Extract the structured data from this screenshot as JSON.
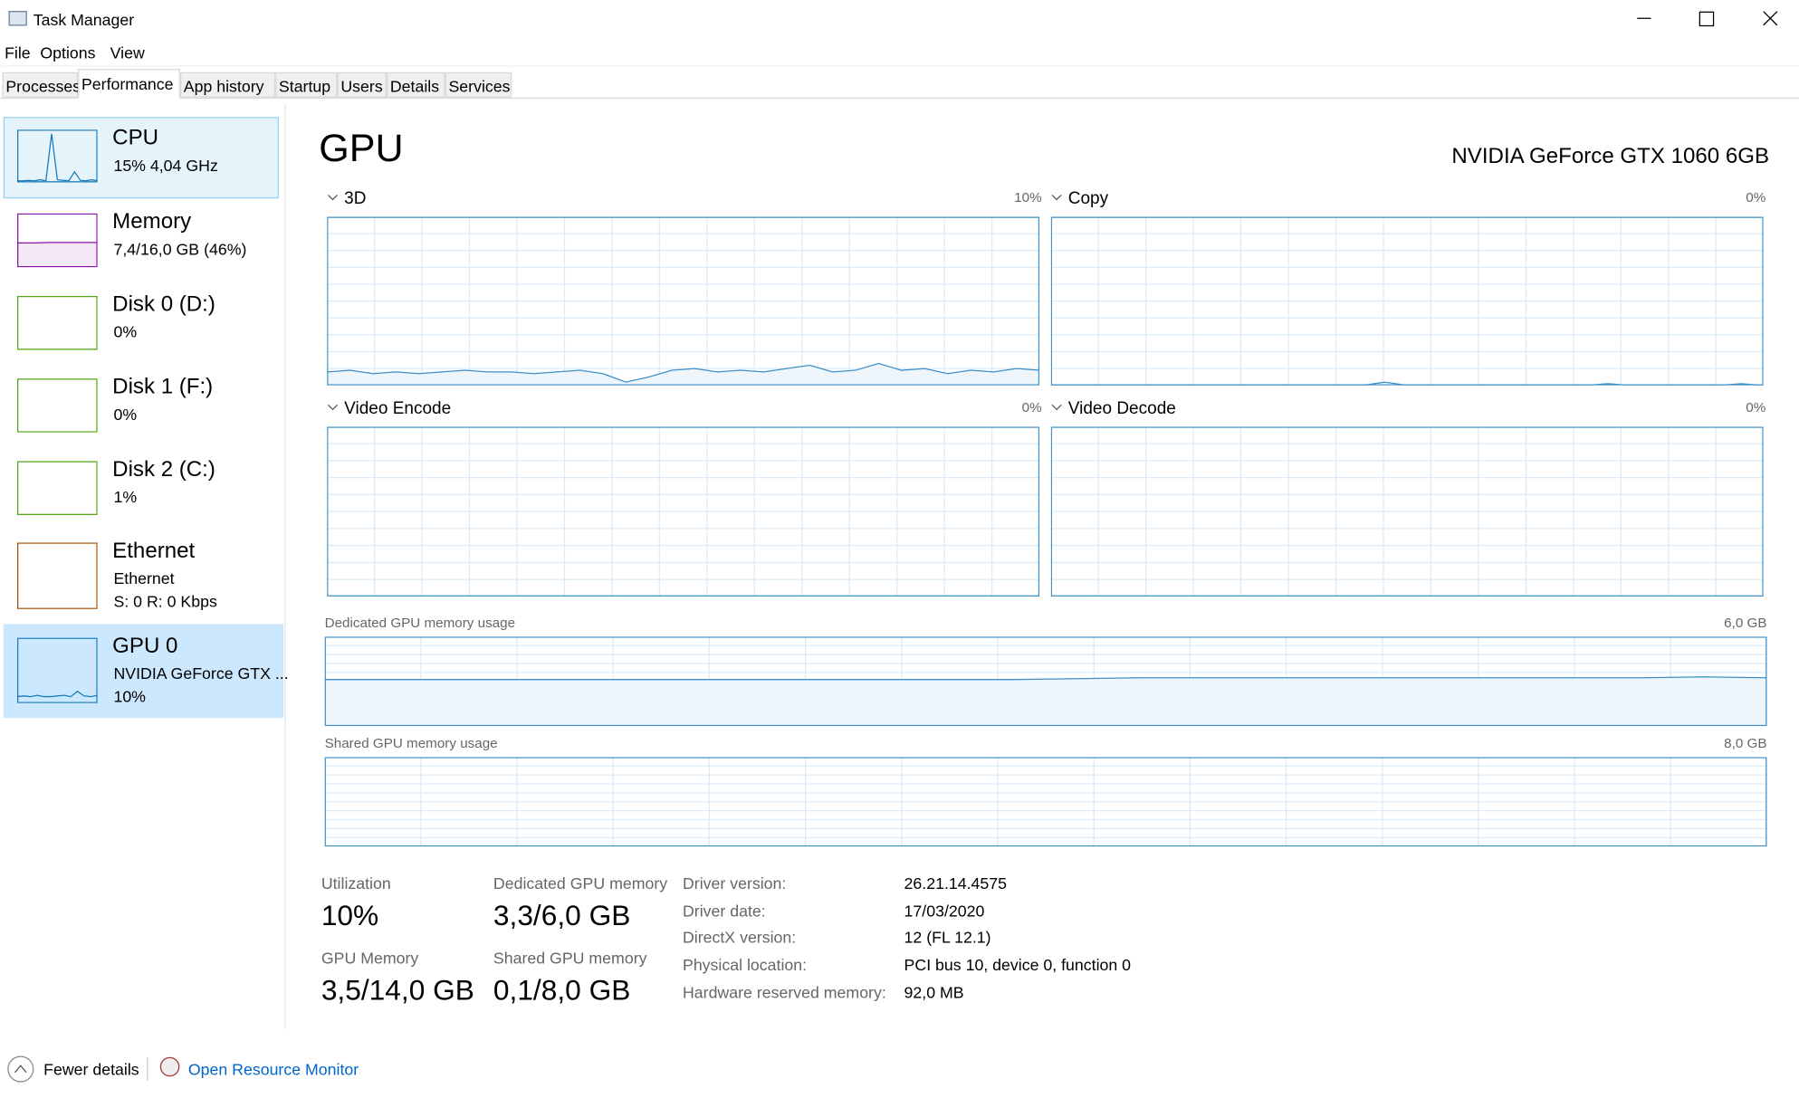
{
  "window": {
    "title": "Task Manager"
  },
  "menu": [
    "File",
    "Options",
    "View"
  ],
  "tabs": [
    "Processes",
    "Performance",
    "App history",
    "Startup",
    "Users",
    "Details",
    "Services"
  ],
  "sidebar": [
    {
      "name": "CPU",
      "lines": [
        "15%  4,04 GHz"
      ]
    },
    {
      "name": "Memory",
      "lines": [
        "7,4/16,0 GB (46%)"
      ]
    },
    {
      "name": "Disk 0 (D:)",
      "lines": [
        "0%"
      ]
    },
    {
      "name": "Disk 1 (F:)",
      "lines": [
        "0%"
      ]
    },
    {
      "name": "Disk 2 (C:)",
      "lines": [
        "1%"
      ]
    },
    {
      "name": "Ethernet",
      "lines": [
        "Ethernet",
        "S: 0  R: 0 Kbps"
      ]
    },
    {
      "name": "GPU 0",
      "lines": [
        "NVIDIA GeForce GTX ...",
        "10%"
      ]
    }
  ],
  "panel": {
    "title": "GPU",
    "device": "NVIDIA GeForce GTX 1060 6GB",
    "graphs": [
      {
        "label": "3D",
        "value": "10%"
      },
      {
        "label": "Copy",
        "value": "0%"
      },
      {
        "label": "Video Encode",
        "value": "0%"
      },
      {
        "label": "Video Decode",
        "value": "0%"
      }
    ],
    "memory_graphs": [
      {
        "label": "Dedicated GPU memory usage",
        "max": "6,0 GB"
      },
      {
        "label": "Shared GPU memory usage",
        "max": "8,0 GB"
      }
    ],
    "stats": [
      {
        "label": "Utilization",
        "value": "10%"
      },
      {
        "label": "Dedicated GPU memory",
        "value": "3,3/6,0 GB"
      },
      {
        "label": "GPU Memory",
        "value": "3,5/14,0 GB"
      },
      {
        "label": "Shared GPU memory",
        "value": "0,1/8,0 GB"
      }
    ],
    "details": [
      [
        "Driver version:",
        "26.21.14.4575"
      ],
      [
        "Driver date:",
        "17/03/2020"
      ],
      [
        "DirectX version:",
        "12 (FL 12.1)"
      ],
      [
        "Physical location:",
        "PCI bus 10, device 0, function 0"
      ],
      [
        "Hardware reserved memory:",
        "92,0 MB"
      ]
    ]
  },
  "footer": {
    "fewer": "Fewer details",
    "monitor": "Open Resource Monitor"
  }
}
